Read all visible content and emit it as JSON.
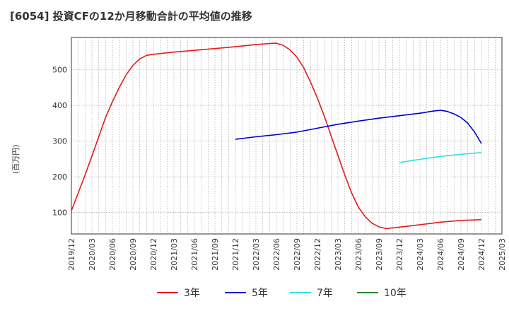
{
  "title": "[6054]  投資CFの12か月移動合計の平均値の推移",
  "chart_data": {
    "type": "line",
    "title": "[6054]  投資CFの12か月移動合計の平均値の推移",
    "xlabel": "",
    "ylabel": "(百万円)",
    "x_ticks": [
      "2019/12",
      "2020/03",
      "2020/06",
      "2020/09",
      "2020/12",
      "2021/03",
      "2021/06",
      "2021/09",
      "2021/12",
      "2022/03",
      "2022/06",
      "2022/09",
      "2022/12",
      "2023/03",
      "2023/06",
      "2023/09",
      "2023/12",
      "2024/03",
      "2024/06",
      "2024/09",
      "2024/12",
      "2025/03"
    ],
    "y_ticks": [
      100,
      200,
      300,
      400,
      500
    ],
    "ylim": [
      40,
      590
    ],
    "grid": true,
    "legend_position": "bottom",
    "series": [
      {
        "name": "3年",
        "color": "#e41a1c",
        "x": [
          "2019/12",
          "2020/01",
          "2020/02",
          "2020/03",
          "2020/04",
          "2020/05",
          "2020/06",
          "2020/07",
          "2020/08",
          "2020/09",
          "2020/10",
          "2020/11",
          "2020/12",
          "2021/03",
          "2021/06",
          "2021/09",
          "2021/12",
          "2022/03",
          "2022/05",
          "2022/06",
          "2022/07",
          "2022/08",
          "2022/09",
          "2022/10",
          "2022/11",
          "2022/12",
          "2023/01",
          "2023/02",
          "2023/03",
          "2023/04",
          "2023/05",
          "2023/06",
          "2023/07",
          "2023/08",
          "2023/09",
          "2023/10",
          "2023/11",
          "2023/12",
          "2024/03",
          "2024/06",
          "2024/09",
          "2024/12"
        ],
        "y": [
          105,
          155,
          205,
          258,
          312,
          366,
          410,
          450,
          485,
          512,
          530,
          540,
          543,
          549,
          554,
          559,
          564,
          570,
          573,
          574,
          568,
          555,
          535,
          505,
          465,
          420,
          370,
          315,
          260,
          205,
          155,
          115,
          88,
          70,
          60,
          55,
          57,
          59,
          66,
          73,
          78,
          80
        ]
      },
      {
        "name": "5年",
        "color": "#0000cc",
        "x": [
          "2021/12",
          "2022/03",
          "2022/06",
          "2022/09",
          "2022/12",
          "2023/03",
          "2023/06",
          "2023/09",
          "2023/12",
          "2024/03",
          "2024/05",
          "2024/06",
          "2024/07",
          "2024/08",
          "2024/09",
          "2024/10",
          "2024/11",
          "2024/12"
        ],
        "y": [
          305,
          312,
          318,
          325,
          336,
          347,
          356,
          364,
          371,
          378,
          384,
          386,
          383,
          376,
          366,
          350,
          325,
          293
        ]
      },
      {
        "name": "7年",
        "color": "#33ddee",
        "x": [
          "2023/12",
          "2024/03",
          "2024/06",
          "2024/09",
          "2024/12"
        ],
        "y": [
          240,
          249,
          257,
          263,
          268
        ]
      },
      {
        "name": "10年",
        "color": "#228B22",
        "x": [],
        "y": []
      }
    ]
  }
}
